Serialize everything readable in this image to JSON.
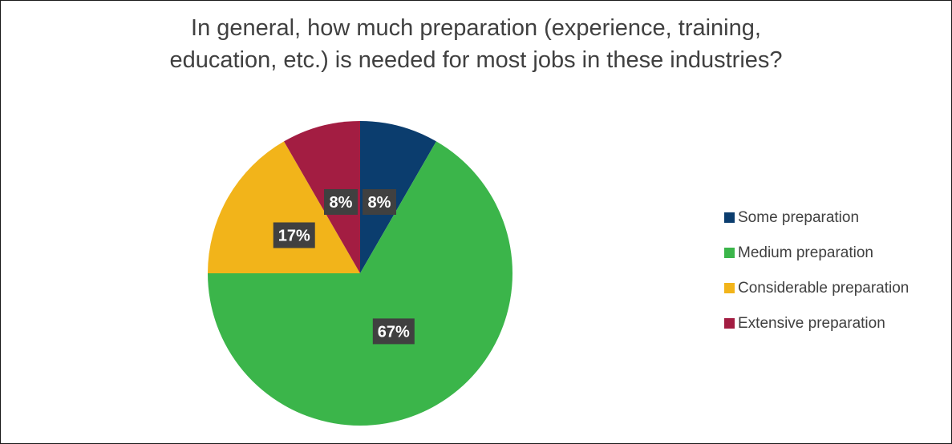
{
  "chart_data": {
    "type": "pie",
    "title_lines": [
      "In general, how much preparation (experience, training,",
      "education, etc.) is needed for most jobs in these industries?"
    ],
    "categories": [
      "Some preparation",
      "Medium preparation",
      "Considerable preparation",
      "Extensive preparation"
    ],
    "values": [
      8.33,
      66.67,
      16.67,
      8.33
    ],
    "labels": [
      "8%",
      "67%",
      "17%",
      "8%"
    ],
    "colors": [
      "#0b3d6e",
      "#3bb54a",
      "#f2b41a",
      "#a31d42"
    ],
    "legend_position": "right"
  }
}
